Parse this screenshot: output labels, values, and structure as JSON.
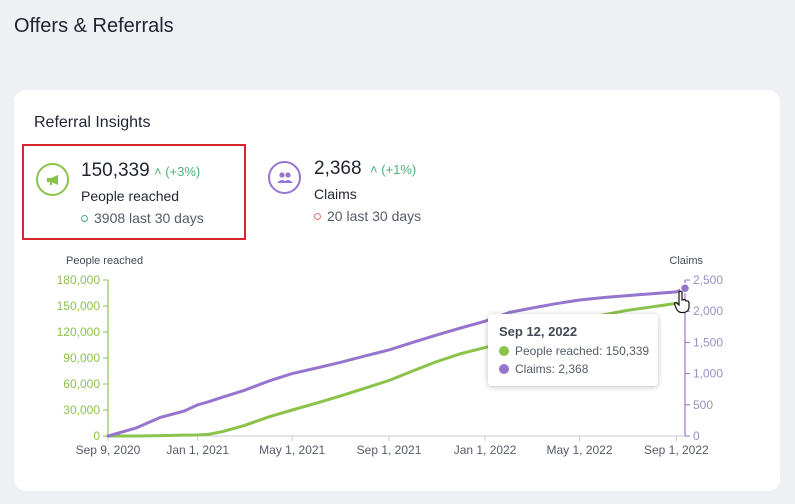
{
  "page": {
    "title": "Offers & Referrals"
  },
  "card": {
    "title": "Referral Insights"
  },
  "metrics": [
    {
      "icon": "megaphone-icon",
      "value": "150,339",
      "change": "(+3%)",
      "label": "People reached",
      "sub": "3908 last 30 days",
      "color": "#8bc34a"
    },
    {
      "icon": "users-icon",
      "value": "2,368",
      "change": "(+1%)",
      "label": "Claims",
      "sub": "20 last 30 days",
      "color": "#9575cd"
    }
  ],
  "colors": {
    "green": "#8bc34a",
    "purple": "#9575cd",
    "change": "#4caf7a",
    "claims_sub_dot": "#e57373",
    "selected_border": "#d9262c"
  },
  "tooltip": {
    "date": "Sep 12, 2022",
    "rows": [
      "People reached: 150,339",
      "Claims: 2,368"
    ]
  },
  "chart_data": {
    "type": "line",
    "title": "",
    "x": [
      "2020-09-09",
      "2020-10-15",
      "2020-11-15",
      "2020-12-15",
      "2021-01-01",
      "2021-01-15",
      "2021-02-01",
      "2021-03-01",
      "2021-04-01",
      "2021-05-01",
      "2021-06-01",
      "2021-07-01",
      "2021-08-01",
      "2021-09-01",
      "2021-10-01",
      "2021-11-01",
      "2021-12-01",
      "2022-01-01",
      "2022-02-01",
      "2022-03-01",
      "2022-04-01",
      "2022-05-01",
      "2022-06-01",
      "2022-07-01",
      "2022-08-01",
      "2022-09-01",
      "2022-09-12"
    ],
    "x_ticks": [
      "Sep 9, 2020",
      "Jan 1, 2021",
      "May 1, 2021",
      "Sep 1, 2021",
      "Jan 1, 2022",
      "May 1, 2022",
      "Sep 1, 2022"
    ],
    "x_tick_dates": [
      "2020-09-09",
      "2021-01-01",
      "2021-05-01",
      "2021-09-01",
      "2022-01-01",
      "2022-05-01",
      "2022-09-01"
    ],
    "x_range": [
      "2020-09-09",
      "2022-09-12"
    ],
    "series": [
      {
        "name": "People reached",
        "axis": "left",
        "values": [
          0,
          0,
          500,
          1000,
          1200,
          2000,
          5000,
          12000,
          22000,
          30000,
          38000,
          46000,
          55000,
          64000,
          75000,
          86000,
          95000,
          102000,
          110000,
          118000,
          126000,
          134000,
          140000,
          145000,
          149000,
          153000,
          150339
        ]
      },
      {
        "name": "Claims",
        "axis": "right",
        "values": [
          0,
          130,
          300,
          400,
          500,
          550,
          620,
          730,
          880,
          1000,
          1090,
          1180,
          1280,
          1380,
          1500,
          1620,
          1730,
          1840,
          1980,
          2050,
          2120,
          2180,
          2220,
          2250,
          2280,
          2310,
          2368
        ]
      }
    ],
    "ylabel_left": "People reached",
    "ylabel_right": "Claims",
    "ylim_left": [
      0,
      180000
    ],
    "yticks_left": [
      "0",
      "30,000",
      "60,000",
      "90,000",
      "120,000",
      "150,000",
      "180,000"
    ],
    "ylim_right": [
      0,
      2500
    ],
    "yticks_right": [
      "0",
      "500",
      "1,000",
      "1,500",
      "2,000",
      "2,500"
    ],
    "grid": false
  }
}
